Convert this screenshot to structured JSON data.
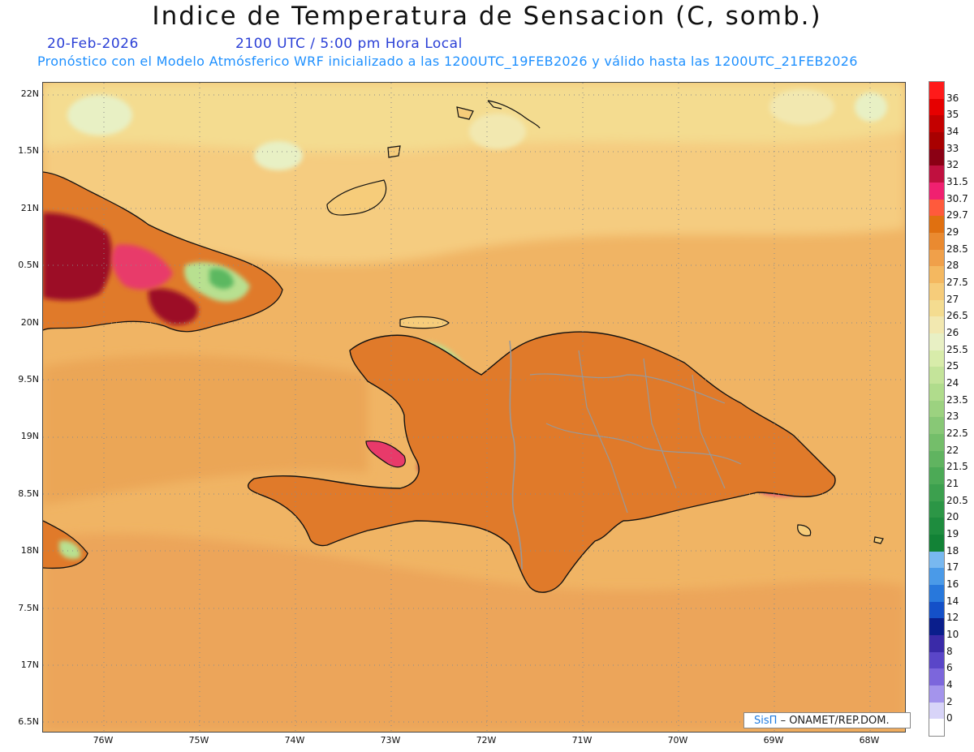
{
  "header": {
    "title": "Indice de Temperatura de Sensacion (C, somb.)",
    "date": "20-Feb-2026",
    "time": "2100 UTC / 5:00 pm Hora Local",
    "model_info": "Pronóstico con el Modelo Atmósferico WRF inicializado a las 1200UTC_19FEB2026 y válido hasta las  1200UTC_21FEB2026"
  },
  "map": {
    "lat_labels": [
      "22N",
      "1.5N",
      "21N",
      "0.5N",
      "20N",
      "9.5N",
      "19N",
      "8.5N",
      "18N",
      "7.5N",
      "17N",
      "6.5N"
    ],
    "lon_labels": [
      "76W",
      "75W",
      "74W",
      "73W",
      "72W",
      "71W",
      "70W",
      "69W",
      "68W"
    ],
    "background_color": "#f2b862",
    "land_colors": {
      "hot": "#9c0a25",
      "warm": "#e83a6a",
      "mild": "#e07a2a",
      "green": "#5cb860",
      "lightgreen": "#b8e090",
      "blue": "#2d5be0",
      "darkblue": "#1a1a8a"
    }
  },
  "colorbar": {
    "levels": [
      {
        "label": "36",
        "color": "#ff1a1a"
      },
      {
        "label": "35",
        "color": "#e60000"
      },
      {
        "label": "34",
        "color": "#c40000"
      },
      {
        "label": "33",
        "color": "#a80000"
      },
      {
        "label": "32",
        "color": "#8b0014"
      },
      {
        "label": "31.5",
        "color": "#c0103f"
      },
      {
        "label": "30.7",
        "color": "#f02070"
      },
      {
        "label": "29.7",
        "color": "#ff5a3c"
      },
      {
        "label": "29",
        "color": "#e07010"
      },
      {
        "label": "28.5",
        "color": "#ea8a30"
      },
      {
        "label": "28",
        "color": "#f0a04a"
      },
      {
        "label": "27.5",
        "color": "#f4b860"
      },
      {
        "label": "27",
        "color": "#f6cc7a"
      },
      {
        "label": "26.5",
        "color": "#f4dc90"
      },
      {
        "label": "26",
        "color": "#f2e8b0"
      },
      {
        "label": "25.5",
        "color": "#e8f0c4"
      },
      {
        "label": "25",
        "color": "#d8ecaa"
      },
      {
        "label": "24",
        "color": "#c4e49a"
      },
      {
        "label": "23.5",
        "color": "#b0dc8c"
      },
      {
        "label": "23",
        "color": "#9cd280"
      },
      {
        "label": "22.5",
        "color": "#88c876"
      },
      {
        "label": "22",
        "color": "#74be6a"
      },
      {
        "label": "21.5",
        "color": "#60b460"
      },
      {
        "label": "21",
        "color": "#4caa56"
      },
      {
        "label": "20.5",
        "color": "#3ca04e"
      },
      {
        "label": "20",
        "color": "#2c9646"
      },
      {
        "label": "19",
        "color": "#1e8c3e"
      },
      {
        "label": "18",
        "color": "#128236"
      },
      {
        "label": "17",
        "color": "#78b8f0"
      },
      {
        "label": "16",
        "color": "#4a9ae8"
      },
      {
        "label": "14",
        "color": "#2878dc"
      },
      {
        "label": "12",
        "color": "#1450c8"
      },
      {
        "label": "10",
        "color": "#0a1e8c"
      },
      {
        "label": "8",
        "color": "#3a2aa8"
      },
      {
        "label": "6",
        "color": "#5a46c8"
      },
      {
        "label": "4",
        "color": "#7c66dc"
      },
      {
        "label": "2",
        "color": "#a494ec"
      },
      {
        "label": "0",
        "color": "#d8d4f8"
      },
      {
        "label": "",
        "color": "#ffffff"
      }
    ]
  },
  "credit": {
    "sis": "SisΠ",
    "org": "– ONAMET/REP.DOM."
  }
}
